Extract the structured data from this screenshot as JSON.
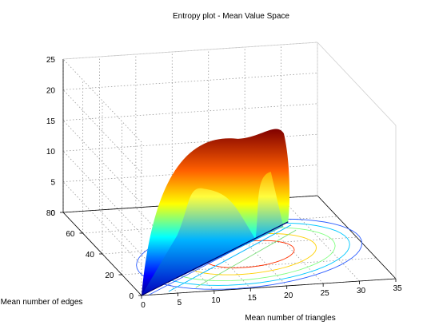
{
  "chart_data": {
    "type": "surface",
    "title": "Entropy plot - Mean Value Space",
    "xlabel": "Mean number of triangles",
    "ylabel": "Mean number of edges",
    "zlabel": "",
    "x_ticks": [
      "0",
      "5",
      "10",
      "15",
      "20",
      "25",
      "30",
      "35"
    ],
    "y_ticks": [
      "0",
      "20",
      "40",
      "60",
      "80"
    ],
    "z_ticks": [
      "0",
      "5",
      "10",
      "15",
      "20",
      "25"
    ],
    "xlim": [
      0,
      35
    ],
    "ylim": [
      0,
      80
    ],
    "zlim": [
      0,
      25
    ],
    "grid": true,
    "colormap": "jet",
    "surface": {
      "description_points": [
        {
          "x": 0,
          "y": 0,
          "z": 0
        },
        {
          "x": 18,
          "y": 35,
          "z": 18.2
        },
        {
          "x": 27,
          "y": 55,
          "z": 15
        },
        {
          "x": 28,
          "y": 58,
          "z": 0
        }
      ],
      "peak_z": 18.2
    },
    "contours": {
      "levels": [
        2,
        6,
        10,
        14,
        17
      ],
      "colors": [
        "#2a5cff",
        "#00c8ff",
        "#80ff80",
        "#ffd000",
        "#ff3000"
      ]
    }
  }
}
